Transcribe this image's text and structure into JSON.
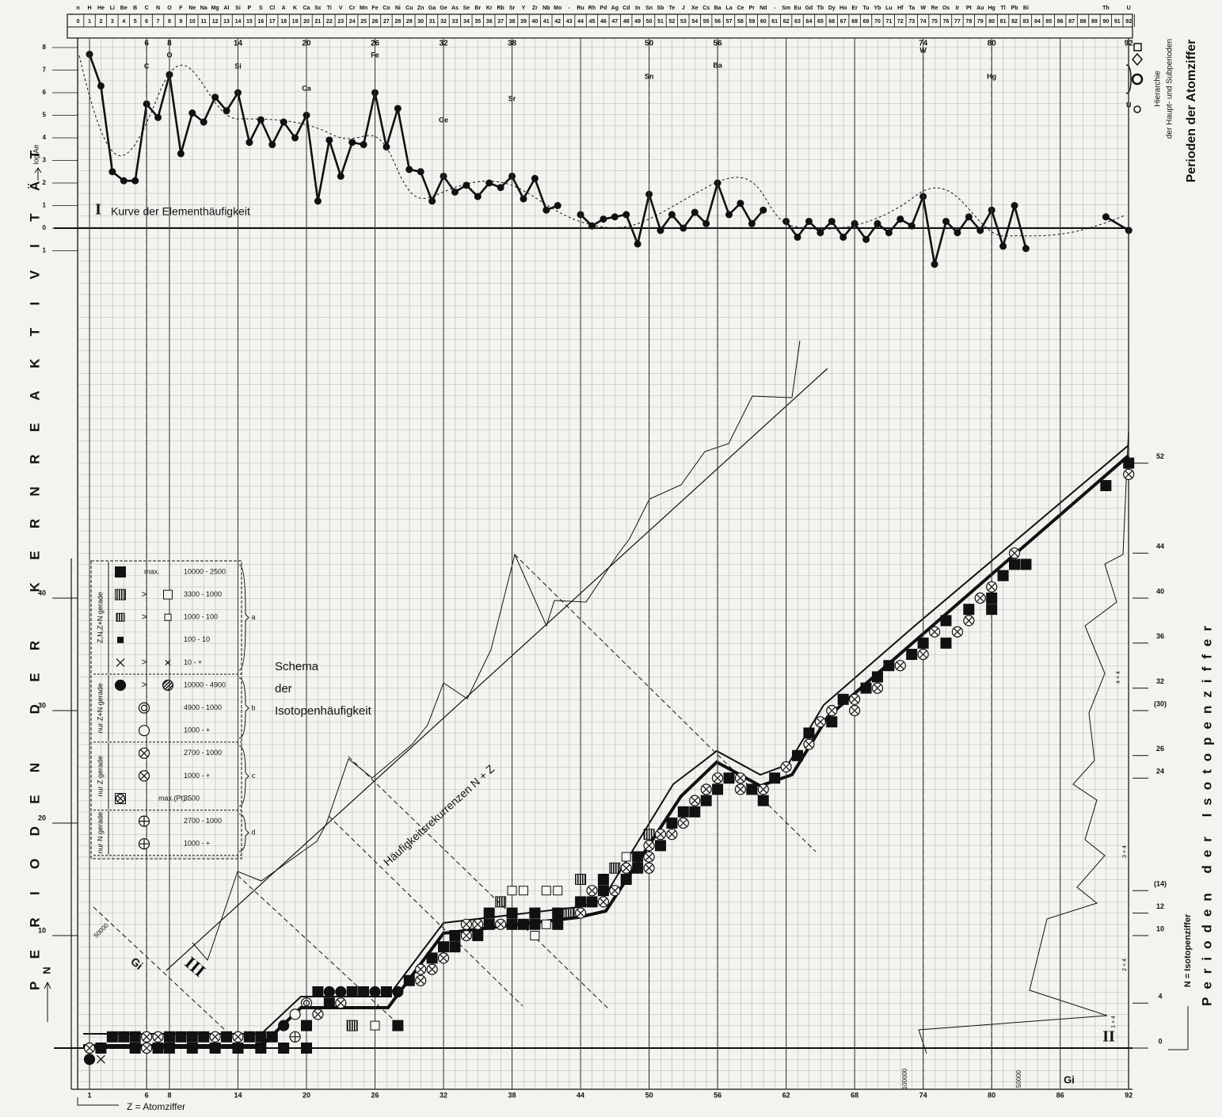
{
  "chart_data": [
    {
      "type": "line",
      "title": "Kurve der Elementhäufigkeit",
      "roman": "I",
      "ylabel": "log Ae",
      "xlim": [
        0,
        92
      ],
      "ylim": [
        -1,
        8
      ],
      "yticks": [
        8,
        7,
        6,
        5,
        4,
        3,
        2,
        1,
        0,
        {
          "value": -1,
          "label": "1"
        }
      ],
      "x": [
        1,
        2,
        3,
        4,
        5,
        6,
        7,
        8,
        9,
        10,
        11,
        12,
        13,
        14,
        15,
        16,
        17,
        18,
        19,
        20,
        21,
        22,
        23,
        24,
        25,
        26,
        27,
        28,
        29,
        30,
        31,
        32,
        33,
        34,
        35,
        36,
        37,
        38,
        39,
        40,
        41,
        42,
        43,
        44,
        45,
        46,
        47,
        48,
        49,
        50,
        51,
        52,
        53,
        54,
        55,
        56,
        57,
        58,
        59,
        60,
        61,
        62,
        63,
        64,
        65,
        66,
        67,
        68,
        69,
        70,
        71,
        72,
        73,
        74,
        75,
        76,
        77,
        78,
        79,
        80,
        81,
        82,
        83,
        86,
        90,
        92
      ],
      "series": [
        {
          "color": "#111111",
          "values": [
            7.7,
            6.3,
            2.5,
            2.1,
            2.1,
            5.5,
            4.9,
            6.8,
            3.3,
            5.1,
            4.7,
            5.8,
            5.2,
            6.0,
            3.8,
            4.8,
            3.7,
            4.7,
            4.0,
            5.0,
            1.2,
            3.9,
            2.3,
            3.8,
            3.7,
            6.0,
            3.6,
            5.3,
            2.6,
            2.5,
            1.2,
            2.3,
            1.6,
            1.9,
            1.4,
            2.0,
            1.8,
            2.3,
            1.3,
            2.2,
            0.8,
            1.0,
            null,
            0.6,
            0.1,
            0.4,
            0.5,
            0.6,
            -0.7,
            1.5,
            -0.1,
            0.6,
            0.0,
            0.7,
            0.2,
            2.0,
            0.6,
            1.1,
            0.2,
            0.8,
            null,
            0.3,
            -0.4,
            0.3,
            -0.2,
            0.3,
            -0.4,
            0.2,
            -0.5,
            0.2,
            -0.2,
            0.4,
            0.1,
            1.4,
            -1.6,
            0.3,
            -0.2,
            0.5,
            -0.1,
            0.8,
            -0.8,
            1.0,
            -0.9,
            null,
            0.5,
            -0.1
          ]
        }
      ],
      "element_symbols": [
        "n",
        "H",
        "He",
        "Li",
        "Be",
        "B",
        "C",
        "N",
        "O",
        "F",
        "Ne",
        "Na",
        "Mg",
        "Al",
        "Si",
        "P",
        "S",
        "Cl",
        "A",
        "K",
        "Ca",
        "Sc",
        "Ti",
        "V",
        "Cr",
        "Mn",
        "Fe",
        "Co",
        "Ni",
        "Cu",
        "Zn",
        "Ga",
        "Ge",
        "As",
        "Se",
        "Br",
        "Kr",
        "Rb",
        "Sr",
        "Y",
        "Zr",
        "Nb",
        "Mo",
        "-",
        "Ru",
        "Rh",
        "Pd",
        "Ag",
        "Cd",
        "In",
        "Sn",
        "Sb",
        "Te",
        "J",
        "Xe",
        "Cs",
        "Ba",
        "La",
        "Ce",
        "Pr",
        "Nd",
        "-",
        "Sm",
        "Eu",
        "Gd",
        "Tb",
        "Dy",
        "Ho",
        "Er",
        "Tu",
        "Yb",
        "Lu",
        "Hf",
        "Ta",
        "W",
        "Re",
        "Os",
        "Ir",
        "Pt",
        "Au",
        "Hg",
        "Tl",
        "Pb",
        "Bi",
        null,
        null,
        null,
        null,
        null,
        null,
        "Th",
        null,
        "U"
      ],
      "atomic_numbers": [
        0,
        1,
        2,
        3,
        4,
        5,
        6,
        7,
        8,
        9,
        10,
        11,
        12,
        13,
        14,
        15,
        16,
        17,
        18,
        19,
        20,
        21,
        22,
        23,
        24,
        25,
        26,
        27,
        28,
        29,
        30,
        31,
        32,
        33,
        34,
        35,
        36,
        37,
        38,
        39,
        40,
        41,
        42,
        43,
        44,
        45,
        46,
        47,
        48,
        49,
        50,
        51,
        52,
        53,
        54,
        55,
        56,
        57,
        58,
        59,
        60,
        61,
        62,
        63,
        64,
        65,
        66,
        67,
        68,
        69,
        70,
        71,
        72,
        73,
        74,
        75,
        76,
        77,
        78,
        79,
        80,
        81,
        82,
        83,
        84,
        85,
        86,
        87,
        88,
        89,
        90,
        91,
        92
      ],
      "main_periods": [
        6,
        8,
        14,
        20,
        26,
        32,
        38,
        50,
        56,
        74,
        80,
        92
      ],
      "peak_labels": [
        "C",
        "O",
        "Si",
        "Ca",
        "Fe",
        "Ge",
        "Sr",
        "Sn",
        "Ba",
        "W",
        "Hg",
        "U"
      ]
    },
    {
      "type": "scatter",
      "title": [
        "Schema",
        "der",
        "Isotopenhäufigkeit"
      ],
      "roman": "III",
      "xlabel": "Z = Atomziffer",
      "ylabel": "N",
      "y2label": "N = Isotopenziffer",
      "xlim": [
        0,
        92
      ],
      "ylim": [
        0,
        52
      ],
      "xticks": [
        1,
        6,
        8,
        14,
        20,
        26,
        32,
        38,
        44,
        50,
        56,
        62,
        68,
        74,
        80,
        86,
        92
      ],
      "yticks": [
        10,
        20,
        30,
        40
      ],
      "y2lim": [
        0,
        52
      ],
      "y2ticks": [
        0,
        4,
        10,
        12,
        {
          "value": 14,
          "label": "(14)"
        },
        24,
        26,
        {
          "value": 30,
          "label": "(30)"
        },
        32,
        36,
        40,
        44,
        52
      ],
      "points": [
        [
          1,
          0,
          "ox"
        ],
        [
          1,
          -1,
          "dot"
        ],
        [
          2,
          -1,
          "x"
        ],
        [
          2,
          0,
          "sq"
        ],
        [
          3,
          1,
          "sq"
        ],
        [
          4,
          1,
          "sq"
        ],
        [
          5,
          1,
          "sq"
        ],
        [
          5,
          0,
          "sq"
        ],
        [
          6,
          0,
          "ox"
        ],
        [
          6,
          1,
          "ox"
        ],
        [
          7,
          0,
          "sq"
        ],
        [
          7,
          1,
          "ox"
        ],
        [
          8,
          0,
          "sq"
        ],
        [
          8,
          1,
          "sq"
        ],
        [
          9,
          1,
          "sq"
        ],
        [
          10,
          0,
          "sq"
        ],
        [
          10,
          1,
          "sq"
        ],
        [
          11,
          1,
          "sq"
        ],
        [
          12,
          0,
          "sq"
        ],
        [
          12,
          1,
          "ox"
        ],
        [
          13,
          1,
          "sq"
        ],
        [
          14,
          0,
          "sq"
        ],
        [
          14,
          1,
          "ox"
        ],
        [
          15,
          1,
          "sq"
        ],
        [
          16,
          0,
          "sq"
        ],
        [
          16,
          1,
          "sq"
        ],
        [
          17,
          1,
          "sq"
        ],
        [
          18,
          0,
          "sq"
        ],
        [
          18,
          2,
          "dot"
        ],
        [
          19,
          1,
          "op"
        ],
        [
          19,
          3,
          "oc"
        ],
        [
          20,
          0,
          "sq"
        ],
        [
          20,
          2,
          "sq"
        ],
        [
          20,
          4,
          "dc"
        ],
        [
          21,
          3,
          "ox"
        ],
        [
          21,
          5,
          "sq"
        ],
        [
          22,
          4,
          "sq"
        ],
        [
          22,
          5,
          "dot"
        ],
        [
          23,
          4,
          "ox"
        ],
        [
          23,
          5,
          "dot"
        ],
        [
          24,
          2,
          "hsq"
        ],
        [
          24,
          5,
          "sq"
        ],
        [
          25,
          5,
          "sq"
        ],
        [
          26,
          2,
          "osq"
        ],
        [
          26,
          5,
          "dot"
        ],
        [
          27,
          5,
          "sq"
        ],
        [
          28,
          2,
          "sq"
        ],
        [
          28,
          5,
          "dot"
        ],
        [
          29,
          6,
          "sq"
        ],
        [
          30,
          6,
          "ox"
        ],
        [
          30,
          7,
          "ox"
        ],
        [
          31,
          7,
          "ox"
        ],
        [
          31,
          8,
          "sq"
        ],
        [
          32,
          8,
          "ox"
        ],
        [
          32,
          9,
          "sq"
        ],
        [
          33,
          9,
          "sq"
        ],
        [
          33,
          10,
          "sq"
        ],
        [
          34,
          10,
          "ox"
        ],
        [
          34,
          11,
          "ox"
        ],
        [
          35,
          10,
          "sq"
        ],
        [
          35,
          11,
          "ox"
        ],
        [
          36,
          11,
          "sq"
        ],
        [
          36,
          12,
          "sq"
        ],
        [
          37,
          11,
          "ox"
        ],
        [
          37,
          13,
          "hsq"
        ],
        [
          38,
          11,
          "sq"
        ],
        [
          38,
          12,
          "sq"
        ],
        [
          38,
          14,
          "osq"
        ],
        [
          39,
          11,
          "sq"
        ],
        [
          39,
          14,
          "osq"
        ],
        [
          40,
          10,
          "osq"
        ],
        [
          40,
          11,
          "sq"
        ],
        [
          40,
          12,
          "sq"
        ],
        [
          41,
          11,
          "osq"
        ],
        [
          41,
          14,
          "osq"
        ],
        [
          42,
          11,
          "sq"
        ],
        [
          42,
          12,
          "sq"
        ],
        [
          42,
          14,
          "osq"
        ],
        [
          43,
          12,
          "hsq"
        ],
        [
          44,
          12,
          "ox"
        ],
        [
          44,
          13,
          "sq"
        ],
        [
          44,
          15,
          "hsq"
        ],
        [
          45,
          13,
          "sq"
        ],
        [
          45,
          14,
          "ox"
        ],
        [
          46,
          13,
          "ox"
        ],
        [
          46,
          14,
          "sq"
        ],
        [
          46,
          15,
          "sq"
        ],
        [
          47,
          14,
          "ox"
        ],
        [
          47,
          16,
          "hsq"
        ],
        [
          48,
          15,
          "sq"
        ],
        [
          48,
          16,
          "ox"
        ],
        [
          48,
          17,
          "osq"
        ],
        [
          49,
          16,
          "sq"
        ],
        [
          49,
          17,
          "sq"
        ],
        [
          50,
          16,
          "ox"
        ],
        [
          50,
          17,
          "ox"
        ],
        [
          50,
          18,
          "ox"
        ],
        [
          50,
          19,
          "hsq"
        ],
        [
          51,
          18,
          "sq"
        ],
        [
          51,
          19,
          "ox"
        ],
        [
          52,
          19,
          "ox"
        ],
        [
          52,
          20,
          "sq"
        ],
        [
          53,
          20,
          "ox"
        ],
        [
          53,
          21,
          "sq"
        ],
        [
          54,
          21,
          "sq"
        ],
        [
          54,
          22,
          "ox"
        ],
        [
          55,
          22,
          "sq"
        ],
        [
          55,
          23,
          "ox"
        ],
        [
          56,
          23,
          "sq"
        ],
        [
          56,
          24,
          "ox"
        ],
        [
          57,
          24,
          "sq"
        ],
        [
          58,
          23,
          "ox"
        ],
        [
          58,
          24,
          "ox"
        ],
        [
          59,
          23,
          "sq"
        ],
        [
          60,
          22,
          "sq"
        ],
        [
          60,
          23,
          "ox"
        ],
        [
          61,
          24,
          "sq"
        ],
        [
          62,
          25,
          "ox"
        ],
        [
          63,
          26,
          "sq"
        ],
        [
          64,
          27,
          "ox"
        ],
        [
          64,
          28,
          "sq"
        ],
        [
          65,
          29,
          "ox"
        ],
        [
          66,
          29,
          "sq"
        ],
        [
          66,
          30,
          "ox"
        ],
        [
          67,
          31,
          "sq"
        ],
        [
          68,
          30,
          "ox"
        ],
        [
          68,
          31,
          "ox"
        ],
        [
          69,
          32,
          "sq"
        ],
        [
          70,
          32,
          "ox"
        ],
        [
          70,
          33,
          "sq"
        ],
        [
          71,
          34,
          "sq"
        ],
        [
          72,
          34,
          "ox"
        ],
        [
          73,
          35,
          "sq"
        ],
        [
          74,
          35,
          "ox"
        ],
        [
          74,
          36,
          "sq"
        ],
        [
          75,
          37,
          "ox"
        ],
        [
          76,
          36,
          "sq"
        ],
        [
          76,
          38,
          "sq"
        ],
        [
          77,
          37,
          "ox"
        ],
        [
          78,
          38,
          "ox"
        ],
        [
          78,
          39,
          "sq"
        ],
        [
          79,
          40,
          "ox"
        ],
        [
          80,
          39,
          "sq"
        ],
        [
          80,
          40,
          "sq"
        ],
        [
          80,
          41,
          "ox"
        ],
        [
          81,
          42,
          "sq"
        ],
        [
          82,
          43,
          "sq"
        ],
        [
          82,
          44,
          "ox"
        ],
        [
          83,
          43,
          "sq"
        ],
        [
          90,
          50,
          "sq"
        ],
        [
          92,
          52,
          "sq"
        ],
        [
          92,
          51,
          "ox"
        ]
      ]
    }
  ],
  "legend": [
    {
      "label": "Z,N,Z+N gerade",
      "letter": "a",
      "rows": [
        {
          "left": "sq",
          "note": "max.",
          "range": "10000 - 2500"
        },
        {
          "left": "hsq",
          "arrow": ">",
          "right": "osq",
          "range": "3300 - 1000"
        },
        {
          "left": "gsq",
          "arrow": ">",
          "right": "sosq",
          "range": "1000 - 100"
        },
        {
          "left": "ssq",
          "range": "100 - 10"
        },
        {
          "left": "x",
          "arrow": ">",
          "right": "sx",
          "range": "10 - +"
        }
      ]
    },
    {
      "label": "nur Z+N gerade",
      "letter": "b",
      "rows": [
        {
          "left": "dot",
          "arrow": ">",
          "right": "hcirc",
          "range": "10000 - 4900"
        },
        {
          "mid": "dc",
          "range": "4900 - 1000"
        },
        {
          "mid": "oc",
          "range": "1000 - +"
        }
      ]
    },
    {
      "label": "nur Z gerade",
      "letter": "c",
      "rows": [
        {
          "mid": "ox",
          "range": "2700 - 1000"
        },
        {
          "mid": "ox",
          "range": "1000 - +"
        },
        {
          "left": "bx",
          "note": "max.(Pt)",
          "range": "3500"
        }
      ]
    },
    {
      "label": "nur N gerade",
      "letter": "d",
      "rows": [
        {
          "mid": "op",
          "range": "2700 - 1000"
        },
        {
          "mid": "op",
          "range": "1000 - +"
        }
      ]
    }
  ],
  "labels": {
    "left_title": "PERIODEN DER KERNREAKTIVITÄT",
    "right_title_top": "Perioden der Atomziffer",
    "hierarchy": [
      "Hierarchie",
      "der Haupt- und Subperioden"
    ],
    "right_title_bottom": "Perioden der Isotopenziffer",
    "recurrence": "Häufigkeitsrekurrenzen N + Z",
    "roman_gi": "II",
    "gi": "Gi",
    "scale_top": "50000",
    "scale_left": "100000",
    "scale_right": "50000",
    "multipliers": [
      "1 × 4",
      "2 × 4",
      "3 × 4",
      "4 × 4"
    ]
  }
}
